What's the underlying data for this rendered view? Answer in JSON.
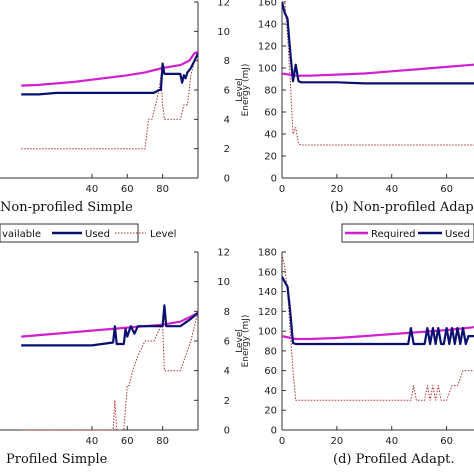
{
  "colors": {
    "required": "#d020d0",
    "used": "#0a1070",
    "level": "#b03030",
    "axis": "#333333"
  },
  "legends": [
    {
      "items": [
        "vailable",
        "Used",
        "Level"
      ]
    },
    {
      "items": [
        "Required",
        "Used"
      ]
    }
  ],
  "chart_data": [
    {
      "type": "line",
      "caption": "Non-profiled Simple",
      "xticks": [
        40,
        60,
        80
      ],
      "yright": {
        "label": "Level",
        "ticks": [
          0,
          2,
          4,
          6,
          8,
          10,
          12
        ]
      },
      "series": [
        {
          "name": "Available",
          "x": [
            0,
            10,
            20,
            30,
            40,
            50,
            60,
            70,
            80,
            90,
            95,
            98,
            100
          ],
          "y": [
            6.3,
            6.35,
            6.45,
            6.55,
            6.7,
            6.85,
            7.0,
            7.2,
            7.5,
            7.7,
            8.0,
            8.5,
            8.6
          ]
        },
        {
          "name": "Used",
          "x": [
            0,
            10,
            20,
            30,
            40,
            50,
            60,
            70,
            75,
            78,
            79,
            80,
            81,
            82,
            90,
            91,
            92,
            93,
            94,
            96,
            98,
            100
          ],
          "y": [
            5.7,
            5.7,
            5.8,
            5.8,
            5.8,
            5.8,
            5.8,
            5.8,
            5.8,
            6.0,
            6.0,
            7.8,
            7.1,
            7.1,
            7.1,
            6.5,
            7.0,
            6.8,
            7.2,
            7.5,
            8.0,
            8.5
          ]
        },
        {
          "name": "Level",
          "x": [
            0,
            68,
            70,
            72,
            74,
            76,
            78,
            79,
            80,
            81,
            82,
            84,
            86,
            90,
            92,
            94,
            95,
            96,
            98,
            100
          ],
          "y": [
            2,
            2,
            2,
            4,
            4,
            5,
            6,
            7,
            5,
            4,
            4,
            4,
            4,
            4,
            5,
            5,
            6,
            7,
            8,
            8
          ]
        }
      ]
    },
    {
      "type": "line",
      "caption": "(b)  Non-profiled Adap",
      "xticks": [
        0,
        20,
        40,
        60
      ],
      "yleft": {
        "label": "Energy (mJ)",
        "ticks": [
          0,
          20,
          40,
          60,
          80,
          100,
          120,
          140,
          160
        ]
      },
      "series": [
        {
          "name": "Required",
          "x": [
            0,
            5,
            10,
            20,
            30,
            40,
            50,
            60,
            70
          ],
          "y": [
            95,
            93,
            93,
            94,
            95,
            97,
            99,
            101,
            103
          ]
        },
        {
          "name": "Used",
          "x": [
            0,
            1,
            2,
            3,
            4,
            5,
            6,
            7,
            10,
            20,
            30,
            40,
            50,
            60,
            70
          ],
          "y": [
            160,
            150,
            145,
            115,
            88,
            103,
            88,
            87,
            87,
            87,
            86,
            86,
            86,
            86,
            86
          ]
        },
        {
          "name": "Level",
          "x": [
            0,
            1,
            2,
            3,
            4,
            5,
            6,
            7,
            70
          ],
          "y": [
            178,
            160,
            130,
            90,
            40,
            46,
            31,
            30,
            30
          ]
        }
      ]
    },
    {
      "type": "line",
      "caption": "Profiled Simple",
      "xticks": [
        40,
        60,
        80
      ],
      "yright": {
        "label": "Level",
        "ticks": [
          0,
          2,
          4,
          6,
          8,
          10,
          12
        ]
      },
      "series": [
        {
          "name": "Available",
          "x": [
            0,
            20,
            40,
            60,
            80,
            90,
            95,
            100
          ],
          "y": [
            6.3,
            6.5,
            6.7,
            6.9,
            7.1,
            7.3,
            7.6,
            7.9
          ]
        },
        {
          "name": "Used",
          "x": [
            0,
            20,
            40,
            52,
            53,
            54,
            58,
            59,
            60,
            62,
            64,
            66,
            70,
            75,
            80,
            81,
            82,
            90,
            96,
            100
          ],
          "y": [
            5.7,
            5.7,
            5.7,
            5.9,
            7.0,
            5.8,
            5.8,
            6.8,
            6.3,
            7.0,
            6.5,
            7.0,
            7.0,
            7.0,
            7.0,
            8.4,
            7.0,
            7.0,
            7.5,
            7.9
          ]
        },
        {
          "name": "Level",
          "x": [
            0,
            52,
            53,
            54,
            58,
            60,
            61,
            63,
            66,
            70,
            75,
            79,
            80,
            81,
            84,
            90,
            96,
            100
          ],
          "y": [
            0,
            0,
            2,
            0,
            0,
            3,
            3,
            4,
            5,
            6,
            6,
            7,
            7,
            4,
            4,
            4,
            6,
            8
          ]
        }
      ]
    },
    {
      "type": "line",
      "caption": "(d)  Profiled Adapt.",
      "xticks": [
        0,
        20,
        40,
        60
      ],
      "yleft": {
        "label": "Energy (mJ)",
        "ticks": [
          0,
          20,
          40,
          60,
          80,
          100,
          120,
          140,
          160,
          180
        ]
      },
      "series": [
        {
          "name": "Required",
          "x": [
            0,
            5,
            10,
            20,
            30,
            40,
            50,
            60,
            70
          ],
          "y": [
            95,
            92,
            92,
            93,
            95,
            97,
            99,
            101,
            104
          ]
        },
        {
          "name": "Used",
          "x": [
            0,
            1,
            2,
            3,
            4,
            5,
            10,
            20,
            30,
            40,
            46,
            47,
            48,
            52,
            53,
            54,
            55,
            56,
            57,
            58,
            59,
            60,
            61,
            62,
            63,
            64,
            65,
            66,
            67,
            68,
            70
          ],
          "y": [
            155,
            150,
            145,
            120,
            88,
            87,
            87,
            87,
            87,
            87,
            87,
            103,
            87,
            87,
            103,
            87,
            103,
            87,
            103,
            87,
            87,
            103,
            87,
            103,
            87,
            103,
            87,
            103,
            87,
            95,
            95
          ]
        },
        {
          "name": "Level",
          "x": [
            0,
            1,
            2,
            3,
            4,
            5,
            20,
            40,
            47,
            48,
            49,
            52,
            53,
            54,
            55,
            56,
            57,
            58,
            60,
            62,
            64,
            66,
            67,
            70
          ],
          "y": [
            178,
            165,
            140,
            100,
            60,
            30,
            30,
            30,
            30,
            45,
            30,
            30,
            45,
            30,
            45,
            30,
            45,
            30,
            30,
            45,
            45,
            60,
            60,
            60
          ]
        }
      ]
    }
  ]
}
